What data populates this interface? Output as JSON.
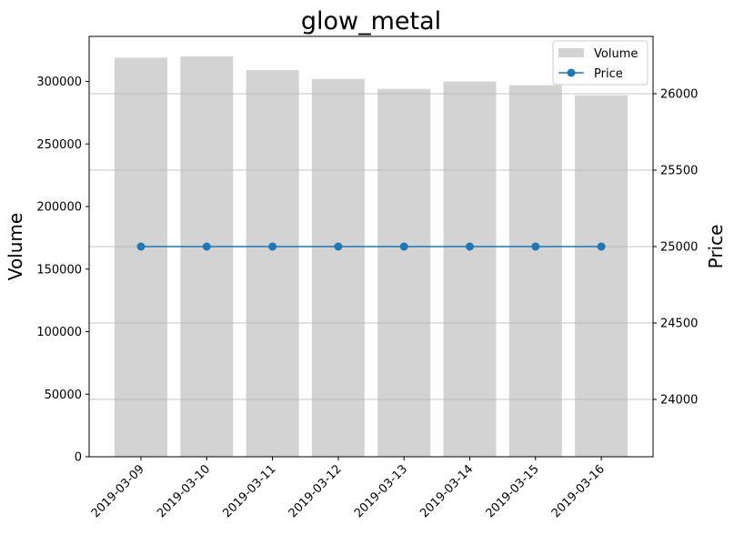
{
  "chart_data": {
    "type": "bar",
    "title": "glow_metal",
    "categories": [
      "2019-03-09",
      "2019-03-10",
      "2019-03-11",
      "2019-03-12",
      "2019-03-13",
      "2019-03-14",
      "2019-03-15",
      "2019-03-16"
    ],
    "series": [
      {
        "name": "Volume",
        "type": "bar",
        "axis": "left",
        "color": "#d3d3d3",
        "values": [
          319000,
          320000,
          309000,
          302000,
          294000,
          300000,
          297000,
          289000
        ]
      },
      {
        "name": "Price",
        "type": "line",
        "axis": "right",
        "color": "#1f77b4",
        "marker": "circle",
        "values": [
          25000,
          25000,
          25000,
          25000,
          25000,
          25000,
          25000,
          25000
        ]
      }
    ],
    "ylabel": "Volume",
    "y2label": "Price",
    "xlabel": "",
    "ylim": [
      0,
      336000
    ],
    "y2lim": [
      23625,
      26375
    ],
    "yticks": [
      0,
      50000,
      100000,
      150000,
      200000,
      250000,
      300000
    ],
    "y2ticks": [
      24000,
      24500,
      25000,
      25500,
      26000
    ],
    "grid": "horizontal lines at right-axis ticks",
    "legend": {
      "placement": "top-right",
      "entries": [
        "Volume",
        "Price"
      ]
    },
    "xtick_rotation": 45
  }
}
